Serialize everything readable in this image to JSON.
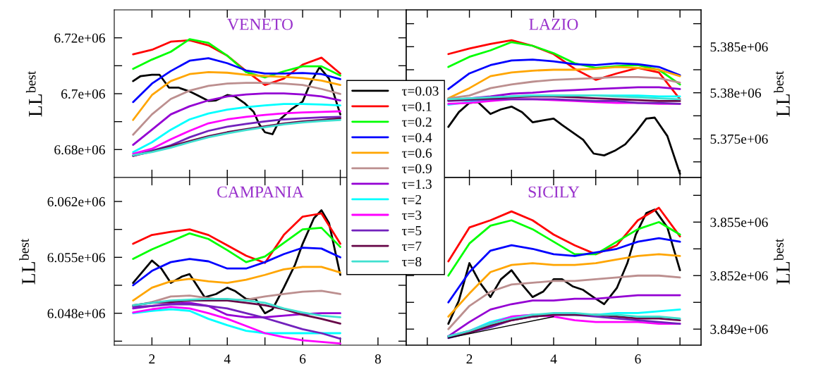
{
  "chart_data": [
    {
      "type": "line",
      "title": "VENETO",
      "ylabel": "LL$^{best}$",
      "legend": "center",
      "tick_labels": "y",
      "x": [
        1.5,
        2,
        2.5,
        3,
        3.5,
        4,
        4.5,
        5,
        5.5,
        6,
        6.5,
        7
      ],
      "xlim": [
        1,
        8.75
      ],
      "xticks": [
        2,
        {
          "value": 3,
          "label": null
        },
        4,
        {
          "value": 5,
          "label": null
        },
        6,
        {
          "value": 7,
          "label": null
        },
        8
      ],
      "ylim": [
        6670000,
        6730000
      ],
      "yticks": [
        {
          "value": 6680000,
          "label": "6.68e+06"
        },
        {
          "value": 6690000,
          "label": null
        },
        {
          "value": 6700000,
          "label": "6.7e+06"
        },
        {
          "value": 6710000,
          "label": null
        },
        {
          "value": 6720000,
          "label": "6.72e+06"
        }
      ],
      "series": [
        {
          "name": "τ=0.03",
          "color": "#000000",
          "x": [
            1.5,
            1.7,
            2.0,
            2.2,
            2.45,
            2.7,
            3.0,
            3.2,
            3.5,
            3.7,
            4.0,
            4.2,
            4.45,
            4.7,
            4.85,
            5.0,
            5.2,
            5.4,
            5.7,
            6.0,
            6.2,
            6.45,
            6.7,
            7.0
          ],
          "values": [
            6704500,
            6706300,
            6706800,
            6706800,
            6702200,
            6702200,
            6700800,
            6699500,
            6697400,
            6697600,
            6699500,
            6699000,
            6696700,
            6693500,
            6689000,
            6686200,
            6685500,
            6690800,
            6694400,
            6697200,
            6703600,
            6709500,
            6705400,
            6692600
          ]
        },
        {
          "name": "τ=0.1",
          "color": "#ff0000",
          "values": [
            6714100,
            6715700,
            6718600,
            6719100,
            6717300,
            6713600,
            6708100,
            6703100,
            6705400,
            6710400,
            6712900,
            6707200
          ]
        },
        {
          "name": "τ=0.2",
          "color": "#00ff00",
          "values": [
            6708900,
            6712200,
            6715000,
            6719500,
            6718200,
            6713600,
            6707700,
            6705800,
            6708000,
            6709800,
            6709800,
            6706500
          ]
        },
        {
          "name": "τ=0.4",
          "color": "#0000ff",
          "values": [
            6697000,
            6703600,
            6708100,
            6711800,
            6712700,
            6710900,
            6708300,
            6707200,
            6707200,
            6707400,
            6707000,
            6705200
          ]
        },
        {
          "name": "τ=0.6",
          "color": "#ffa500",
          "values": [
            6690600,
            6699500,
            6704500,
            6707000,
            6707700,
            6707500,
            6706800,
            6706300,
            6706000,
            6705600,
            6704700,
            6703100
          ]
        },
        {
          "name": "τ=0.9",
          "color": "#bc8f8f",
          "values": [
            6685300,
            6692600,
            6698100,
            6701100,
            6702800,
            6703600,
            6703900,
            6703900,
            6703600,
            6703100,
            6701700,
            6699900
          ]
        },
        {
          "name": "τ=1.3",
          "color": "#9400d3",
          "values": [
            6681700,
            6687100,
            6692600,
            6695500,
            6697600,
            6699000,
            6699700,
            6700100,
            6700100,
            6699700,
            6699000,
            6697600
          ]
        },
        {
          "name": "τ=2",
          "color": "#00ffff",
          "values": [
            6679100,
            6682600,
            6687100,
            6690800,
            6692900,
            6694300,
            6695200,
            6695800,
            6696300,
            6696300,
            6696100,
            6695800
          ]
        },
        {
          "name": "τ=3",
          "color": "#ff00ff",
          "values": [
            6678500,
            6680300,
            6683700,
            6686700,
            6689400,
            6690800,
            6691700,
            6692400,
            6693000,
            6693300,
            6693500,
            6693700
          ]
        },
        {
          "name": "τ=5",
          "color": "#7221bc",
          "values": [
            6677700,
            6679600,
            6681500,
            6684400,
            6686700,
            6688200,
            6689200,
            6690100,
            6690800,
            6691200,
            6691500,
            6691700
          ]
        },
        {
          "name": "τ=7",
          "color": "#670748",
          "values": [
            6677800,
            6679300,
            6681200,
            6683000,
            6684800,
            6686200,
            6687300,
            6688300,
            6689300,
            6690100,
            6690600,
            6691200
          ]
        },
        {
          "name": "τ=8",
          "color": "#40e0d0",
          "values": [
            6678000,
            6679100,
            6680700,
            6682600,
            6684400,
            6685800,
            6687000,
            6688000,
            6689000,
            6689700,
            6690200,
            6690600
          ]
        }
      ]
    },
    {
      "type": "line",
      "title": "LAZIO",
      "y2label": "LL$^{best}$",
      "tick_labels": "y",
      "x": [
        1.5,
        2,
        2.5,
        3,
        3.5,
        4,
        4.5,
        5,
        5.5,
        6,
        6.5,
        7
      ],
      "xlim": [
        0.5,
        7.5
      ],
      "xticks": [
        {
          "value": 1,
          "label": null
        },
        2,
        {
          "value": 3,
          "label": null
        },
        4,
        {
          "value": 5,
          "label": null
        },
        6,
        {
          "value": 7,
          "label": null
        }
      ],
      "y2lim": [
        5370800,
        5389000
      ],
      "y2ticks": [
        {
          "value": 5372500,
          "label": null
        },
        {
          "value": 5375000,
          "label": "5.375e+06"
        },
        {
          "value": 5377500,
          "label": null
        },
        {
          "value": 5380000,
          "label": "5.38e+06"
        },
        {
          "value": 5382500,
          "label": null
        },
        {
          "value": 5385000,
          "label": "5.385e+06"
        },
        {
          "value": 5387500,
          "label": null
        }
      ],
      "series": [
        {
          "name": "τ=0.03",
          "color": "#000000",
          "axis": "y2",
          "x": [
            1.5,
            1.75,
            2.0,
            2.2,
            2.5,
            2.75,
            3.0,
            3.25,
            3.5,
            3.75,
            4.0,
            4.2,
            4.45,
            4.7,
            4.95,
            5.2,
            5.45,
            5.7,
            5.95,
            6.2,
            6.4,
            6.7,
            7.0
          ],
          "values": [
            5376300,
            5377900,
            5378900,
            5379000,
            5377700,
            5378200,
            5378500,
            5377900,
            5376800,
            5377000,
            5377200,
            5376500,
            5375700,
            5374900,
            5373400,
            5373200,
            5373700,
            5374400,
            5375700,
            5377200,
            5377300,
            5375300,
            5371200
          ]
        },
        {
          "name": "τ=0.1",
          "color": "#ff0000",
          "axis": "y2",
          "values": [
            5384200,
            5384800,
            5385300,
            5385700,
            5385100,
            5384200,
            5382600,
            5381400,
            5382100,
            5382700,
            5382200,
            5379300
          ]
        },
        {
          "name": "τ=0.2",
          "color": "#00ff00",
          "axis": "y2",
          "values": [
            5382800,
            5383900,
            5384600,
            5385500,
            5385100,
            5384300,
            5383200,
            5382700,
            5382900,
            5383000,
            5382500,
            5380900
          ]
        },
        {
          "name": "τ=0.4",
          "color": "#0000ff",
          "axis": "y2",
          "values": [
            5380400,
            5382100,
            5383000,
            5383500,
            5383600,
            5383400,
            5383100,
            5383000,
            5383200,
            5383100,
            5382800,
            5381900
          ]
        },
        {
          "name": "τ=0.6",
          "color": "#ffa500",
          "axis": "y2",
          "values": [
            5379400,
            5380500,
            5381800,
            5382200,
            5382400,
            5382500,
            5382500,
            5382600,
            5382800,
            5382700,
            5382500,
            5381800
          ]
        },
        {
          "name": "τ=0.9",
          "color": "#bc8f8f",
          "axis": "y2",
          "values": [
            5379400,
            5379700,
            5380500,
            5380900,
            5381200,
            5381400,
            5381500,
            5381600,
            5381700,
            5381700,
            5381600,
            5381100
          ]
        },
        {
          "name": "τ=1.3",
          "color": "#9400d3",
          "axis": "y2",
          "values": [
            5379200,
            5379400,
            5379600,
            5379900,
            5380000,
            5380200,
            5380300,
            5380400,
            5380500,
            5380600,
            5380600,
            5380400
          ]
        },
        {
          "name": "τ=2",
          "color": "#00ffff",
          "axis": "y2",
          "values": [
            5378700,
            5379000,
            5379300,
            5379600,
            5379700,
            5379700,
            5379700,
            5379700,
            5379700,
            5379700,
            5379600,
            5379600
          ]
        },
        {
          "name": "τ=3",
          "color": "#ff00ff",
          "axis": "y2",
          "values": [
            5378800,
            5378900,
            5379100,
            5379300,
            5379300,
            5379200,
            5379100,
            5379000,
            5378900,
            5378900,
            5378800,
            5378800
          ]
        },
        {
          "name": "τ=5",
          "color": "#7221bc",
          "axis": "y2",
          "values": [
            5379100,
            5379200,
            5379300,
            5379300,
            5379300,
            5379300,
            5379200,
            5379100,
            5379100,
            5378900,
            5378900,
            5378800
          ]
        },
        {
          "name": "τ=7",
          "color": "#670748",
          "axis": "y2",
          "values": [
            5379200,
            5379300,
            5379400,
            5379500,
            5379600,
            5379600,
            5379500,
            5379400,
            5379300,
            5379200,
            5379100,
            5379100
          ]
        },
        {
          "name": "τ=8",
          "color": "#40e0d0",
          "axis": "y2",
          "values": [
            5379300,
            5379400,
            5379500,
            5379600,
            5379700,
            5379700,
            5379700,
            5379700,
            5379600,
            5379500,
            5379400,
            5379300
          ]
        }
      ]
    },
    {
      "type": "line",
      "title": "CAMPANIA",
      "ylabel": "LL$^{best}$",
      "x": [
        1.5,
        2,
        2.5,
        3,
        3.5,
        4,
        4.5,
        5,
        5.5,
        6,
        6.5,
        7
      ],
      "xlim": [
        1,
        8.75
      ],
      "xticks": [
        2,
        {
          "value": 3,
          "label": null
        },
        4,
        {
          "value": 5,
          "label": null
        },
        6,
        {
          "value": 7,
          "label": null
        },
        8
      ],
      "ylim": [
        6044000,
        6065000
      ],
      "yticks": [
        {
          "value": 6044500,
          "label": null
        },
        {
          "value": 6048000,
          "label": "6.048e+06"
        },
        {
          "value": 6051500,
          "label": null
        },
        {
          "value": 6055000,
          "label": "6.055e+06"
        },
        {
          "value": 6058500,
          "label": null
        },
        {
          "value": 6062000,
          "label": "6.062e+06"
        }
      ],
      "series": [
        {
          "name": "τ=0.03",
          "color": "#000000",
          "x": [
            1.5,
            2.0,
            2.25,
            2.5,
            2.8,
            3.0,
            3.4,
            3.7,
            4.0,
            4.2,
            4.5,
            4.75,
            5.0,
            5.2,
            5.5,
            5.8,
            6.0,
            6.3,
            6.5,
            6.7,
            7.0
          ],
          "values": [
            6051800,
            6054600,
            6053600,
            6051800,
            6052600,
            6052900,
            6050000,
            6050400,
            6051200,
            6050800,
            6049800,
            6049800,
            6048000,
            6048500,
            6051200,
            6054100,
            6056700,
            6059900,
            6060900,
            6059300,
            6052800
          ]
        },
        {
          "name": "τ=0.1",
          "color": "#ff0000",
          "values": [
            6056700,
            6057800,
            6058200,
            6058500,
            6057800,
            6056500,
            6055200,
            6054300,
            6057800,
            6060100,
            6060500,
            6056700
          ]
        },
        {
          "name": "τ=0.2",
          "color": "#00ff00",
          "values": [
            6054800,
            6056000,
            6057000,
            6058000,
            6057300,
            6055900,
            6054400,
            6055100,
            6056800,
            6058500,
            6058700,
            6056300
          ]
        },
        {
          "name": "τ=0.4",
          "color": "#0000ff",
          "values": [
            6051500,
            6053300,
            6054400,
            6054800,
            6054500,
            6053600,
            6053600,
            6054400,
            6055400,
            6056200,
            6056100,
            6055000
          ]
        },
        {
          "name": "τ=0.6",
          "color": "#ffa500",
          "values": [
            6049600,
            6051200,
            6052000,
            6052300,
            6052000,
            6051800,
            6052200,
            6052800,
            6053500,
            6053800,
            6053800,
            6053100
          ]
        },
        {
          "name": "τ=0.9",
          "color": "#bc8f8f",
          "values": [
            6048900,
            6049400,
            6050100,
            6050200,
            6049900,
            6049600,
            6049700,
            6050100,
            6050400,
            6050700,
            6050800,
            6050400
          ]
        },
        {
          "name": "τ=1.3",
          "color": "#9400d3",
          "values": [
            6048600,
            6048900,
            6049200,
            6049300,
            6048900,
            6047800,
            6047500,
            6047500,
            6047700,
            6047900,
            6048000,
            6048000
          ]
        },
        {
          "name": "τ=2",
          "color": "#00ffff",
          "values": [
            6048000,
            6048300,
            6048500,
            6048300,
            6047300,
            6046500,
            6045800,
            6045500,
            6045500,
            6045500,
            6045500,
            6045500
          ]
        },
        {
          "name": "τ=3",
          "color": "#ff00ff",
          "values": [
            6048100,
            6048500,
            6048800,
            6048600,
            6048000,
            6047300,
            6046400,
            6045500,
            6045000,
            6044600,
            6044400,
            6044200
          ]
        },
        {
          "name": "τ=5",
          "color": "#7221bc",
          "values": [
            6048800,
            6048900,
            6049100,
            6049100,
            6048900,
            6048600,
            6048000,
            6047400,
            6046700,
            6046000,
            6045500,
            6044800
          ]
        },
        {
          "name": "τ=7",
          "color": "#670748",
          "values": [
            6049000,
            6049300,
            6049400,
            6049600,
            6049600,
            6049600,
            6049300,
            6049000,
            6048500,
            6047800,
            6047300,
            6046700
          ]
        },
        {
          "name": "τ=8",
          "color": "#40e0d0",
          "values": [
            6049000,
            6049300,
            6049600,
            6049700,
            6049800,
            6049800,
            6049600,
            6049300,
            6048600,
            6048100,
            6047700,
            6047500
          ]
        }
      ]
    },
    {
      "type": "line",
      "title": "SICILY",
      "y2label": "LL$^{best}$",
      "x": [
        1.5,
        2,
        2.5,
        3,
        3.5,
        4,
        4.5,
        5,
        5.5,
        6,
        6.5,
        7
      ],
      "xlim": [
        0.5,
        7.5
      ],
      "xticks": [
        {
          "value": 1,
          "label": null
        },
        2,
        {
          "value": 3,
          "label": null
        },
        4,
        {
          "value": 5,
          "label": null
        },
        6,
        {
          "value": 7,
          "label": null
        }
      ],
      "y2lim": [
        3848100,
        3857500
      ],
      "y2ticks": [
        {
          "value": 3849000,
          "label": "3.849e+06"
        },
        {
          "value": 3850500,
          "label": null
        },
        {
          "value": 3852000,
          "label": "3.852e+06"
        },
        {
          "value": 3853500,
          "label": null
        },
        {
          "value": 3855000,
          "label": "3.855e+06"
        },
        {
          "value": 3856500,
          "label": null
        }
      ],
      "series": [
        {
          "name": "τ=0.03",
          "color": "#000000",
          "axis": "y2",
          "x": [
            1.5,
            1.75,
            2.0,
            2.25,
            2.5,
            2.75,
            3.0,
            3.25,
            3.5,
            3.75,
            4.0,
            4.2,
            4.45,
            4.7,
            5.0,
            5.2,
            5.5,
            5.75,
            5.95,
            6.2,
            6.4,
            6.7,
            7.0
          ],
          "values": [
            3849300,
            3850600,
            3852700,
            3851600,
            3850800,
            3851800,
            3852300,
            3851500,
            3850800,
            3851100,
            3851800,
            3851800,
            3851400,
            3851200,
            3850700,
            3850400,
            3851300,
            3852700,
            3854300,
            3855500,
            3855700,
            3854700,
            3852300
          ]
        },
        {
          "name": "τ=0.1",
          "color": "#ff0000",
          "axis": "y2",
          "values": [
            3852800,
            3854700,
            3855100,
            3855600,
            3855100,
            3854300,
            3853700,
            3853200,
            3853700,
            3855100,
            3855800,
            3854200
          ]
        },
        {
          "name": "τ=0.2",
          "color": "#00ff00",
          "axis": "y2",
          "values": [
            3852000,
            3853800,
            3854800,
            3855100,
            3854600,
            3853900,
            3853200,
            3853200,
            3853900,
            3854600,
            3855000,
            3854300
          ]
        },
        {
          "name": "τ=0.4",
          "color": "#0000ff",
          "axis": "y2",
          "values": [
            3850500,
            3852200,
            3853400,
            3853700,
            3853500,
            3853200,
            3853100,
            3853300,
            3853500,
            3853900,
            3854100,
            3853900
          ]
        },
        {
          "name": "τ=0.6",
          "color": "#ffa500",
          "axis": "y2",
          "values": [
            3849700,
            3851000,
            3852200,
            3852600,
            3852700,
            3852600,
            3852600,
            3852700,
            3852900,
            3853100,
            3853200,
            3853100
          ]
        },
        {
          "name": "τ=0.9",
          "color": "#bc8f8f",
          "axis": "y2",
          "values": [
            3849000,
            3850300,
            3851100,
            3851500,
            3851600,
            3851700,
            3851700,
            3851800,
            3851900,
            3852000,
            3852000,
            3851900
          ]
        },
        {
          "name": "τ=1.3",
          "color": "#9400d3",
          "axis": "y2",
          "values": [
            3848600,
            3849400,
            3850100,
            3850400,
            3850600,
            3850600,
            3850700,
            3850700,
            3850800,
            3850900,
            3850900,
            3850900
          ]
        },
        {
          "name": "τ=2",
          "color": "#00ffff",
          "axis": "y2",
          "values": [
            3848600,
            3848900,
            3849400,
            3849700,
            3849800,
            3849800,
            3849800,
            3849800,
            3849900,
            3849900,
            3850000,
            3850100
          ]
        },
        {
          "name": "τ=3",
          "color": "#ff00ff",
          "axis": "y2",
          "values": [
            3848600,
            3848900,
            3849300,
            3849700,
            3849800,
            3849700,
            3849500,
            3849400,
            3849400,
            3849400,
            3849300,
            3849300
          ]
        },
        {
          "name": "τ=5",
          "color": "#7221bc",
          "axis": "y2",
          "values": [
            3848500,
            3848800,
            3849100,
            3849500,
            3849700,
            3849800,
            3849800,
            3849700,
            3849600,
            3849500,
            3849400,
            3849300
          ]
        },
        {
          "name": "τ=7",
          "color": "#670748",
          "axis": "y2",
          "values": [
            3848600,
            3848800,
            3849200,
            3849500,
            3849700,
            3849800,
            3849800,
            3849800,
            3849700,
            3849600,
            3849600,
            3849500
          ]
        },
        {
          "name": "τ=8",
          "color": "#40e0d0",
          "axis": "y2",
          "values": [
            3848600,
            3848900,
            3849300,
            3849600,
            3849800,
            3849900,
            3849900,
            3849800,
            3849800,
            3849700,
            3849700,
            3849600
          ]
        },
        {
          "color": "#000000",
          "axis": "y2",
          "x": [
            1.5,
            4.0
          ],
          "values": [
            3848500,
            3849700
          ]
        }
      ]
    }
  ]
}
